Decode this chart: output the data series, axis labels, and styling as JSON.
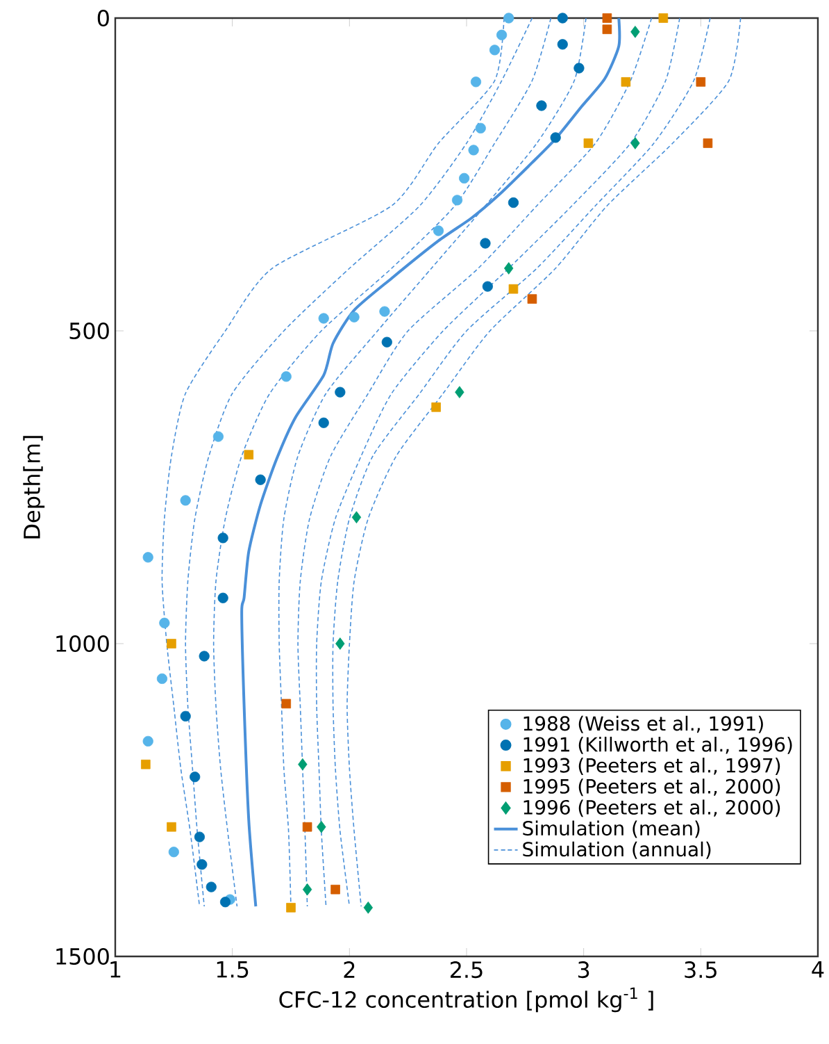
{
  "chart_data": {
    "type": "scatter",
    "xlabel": "CFC-12 concentration [pmol kg$^{-1}$ ]",
    "ylabel": "Depth[m]",
    "xlim": [
      1,
      4
    ],
    "xticks": [
      1,
      1.5,
      2,
      2.5,
      3,
      3.5,
      4
    ],
    "ylim": [
      1500,
      0
    ],
    "yticks": [
      0,
      500,
      1000,
      1500
    ],
    "legend": "bottom right",
    "series": [
      {
        "name": "1988 (Weiss et al., 1991)",
        "marker": "circle",
        "color": "#56b4e9",
        "x": [
          2.68,
          2.65,
          2.62,
          2.54,
          2.56,
          2.53,
          2.49,
          2.46,
          2.38,
          2.02,
          1.89,
          2.15,
          1.73,
          1.44,
          1.3,
          1.14,
          1.21,
          1.2,
          1.14,
          1.25,
          1.49
        ],
        "values": [
          0,
          27,
          51,
          102,
          176,
          211,
          256,
          291,
          340,
          478,
          480,
          469,
          573,
          669,
          771,
          862,
          967,
          1056,
          1156,
          1333,
          1409
        ]
      },
      {
        "name": "1991 (Killworth et al., 1996)",
        "marker": "circle",
        "color": "#0072b2",
        "x": [
          2.91,
          2.91,
          2.98,
          2.82,
          2.88,
          2.7,
          2.58,
          2.59,
          2.16,
          1.96,
          1.89,
          1.62,
          1.46,
          1.46,
          1.38,
          1.3,
          1.34,
          1.36,
          1.37,
          1.41,
          1.47
        ],
        "values": [
          0,
          42,
          80,
          140,
          191,
          295,
          360,
          429,
          518,
          598,
          647,
          738,
          831,
          927,
          1020,
          1116,
          1213,
          1309,
          1353,
          1389,
          1413
        ]
      },
      {
        "name": "1993 (Peeters et al., 1997)",
        "marker": "square",
        "color": "#e69f00",
        "x": [
          3.34,
          3.18,
          3.02,
          2.7,
          2.37,
          1.57,
          1.24,
          1.13,
          1.24,
          1.75
        ],
        "values": [
          0,
          102,
          200,
          433,
          622,
          698,
          1000,
          1193,
          1293,
          1422
        ]
      },
      {
        "name": "1995 (Peeters et al., 2000)",
        "marker": "square",
        "color": "#d55e00",
        "x": [
          3.1,
          3.1,
          3.5,
          3.53,
          2.78,
          1.73,
          1.82,
          1.94
        ],
        "values": [
          0,
          18,
          102,
          200,
          449,
          1096,
          1293,
          1393
        ]
      },
      {
        "name": "1996 (Peeters et al., 2000)",
        "marker": "diamond",
        "color": "#009e73",
        "x": [
          3.22,
          3.22,
          2.68,
          2.47,
          2.03,
          1.96,
          1.8,
          1.88,
          1.82,
          2.08
        ],
        "values": [
          22,
          200,
          400,
          598,
          798,
          1000,
          1193,
          1293,
          1393,
          1422
        ]
      },
      {
        "name": "Simulation (mean)",
        "type": "line",
        "line_style": "solid",
        "color": "#4a90d9",
        "x": [
          3.15,
          3.15,
          3.09,
          2.99,
          2.88,
          2.78,
          2.64,
          2.52,
          2.38,
          2.18,
          2.02,
          1.93,
          1.89,
          1.77,
          1.69,
          1.62,
          1.57,
          1.55,
          1.54,
          1.55,
          1.57,
          1.6
        ],
        "values": [
          0,
          45,
          97,
          142,
          193,
          231,
          282,
          320,
          356,
          416,
          467,
          520,
          571,
          638,
          704,
          778,
          853,
          927,
          949,
          1097,
          1282,
          1420
        ]
      },
      {
        "name": "Simulation (annual)",
        "type": "line",
        "line_style": "dashed",
        "color": "#4a90d9",
        "x": [
          2.66,
          2.62,
          2.38,
          2.18,
          1.67,
          1.47,
          1.3,
          1.24,
          1.21,
          1.2,
          1.22,
          1.25,
          1.28,
          1.32,
          1.36
        ],
        "values": [
          0,
          100,
          200,
          300,
          400,
          500,
          600,
          700,
          800,
          900,
          1000,
          1100,
          1200,
          1300,
          1420
        ]
      },
      {
        "type": "line",
        "line_style": "dashed",
        "color": "#4a90d9",
        "x": [
          2.78,
          2.65,
          2.5,
          2.3,
          2.0,
          1.72,
          1.5,
          1.4,
          1.34,
          1.31,
          1.3,
          1.31,
          1.33,
          1.35,
          1.38
        ],
        "values": [
          0,
          100,
          200,
          300,
          400,
          500,
          600,
          700,
          800,
          900,
          1000,
          1100,
          1200,
          1300,
          1420
        ]
      },
      {
        "type": "line",
        "line_style": "dashed",
        "color": "#4a90d9",
        "x": [
          2.86,
          2.78,
          2.62,
          2.45,
          2.18,
          1.88,
          1.66,
          1.54,
          1.47,
          1.43,
          1.42,
          1.43,
          1.45,
          1.48,
          1.52
        ],
        "values": [
          0,
          100,
          200,
          300,
          400,
          500,
          600,
          700,
          800,
          900,
          1000,
          1100,
          1200,
          1300,
          1420
        ]
      },
      {
        "type": "line",
        "line_style": "dashed",
        "color": "#4a90d9",
        "x": [
          3.01,
          2.96,
          2.8,
          2.58,
          2.35,
          2.12,
          1.9,
          1.78,
          1.72,
          1.7,
          1.7,
          1.71,
          1.72,
          1.74,
          1.75
        ],
        "values": [
          0,
          100,
          200,
          300,
          400,
          500,
          600,
          700,
          800,
          900,
          1000,
          1100,
          1200,
          1300,
          1420
        ]
      },
      {
        "type": "line",
        "line_style": "dashed",
        "color": "#4a90d9",
        "x": [
          3.29,
          3.2,
          3.05,
          2.8,
          2.55,
          2.25,
          2.08,
          1.92,
          1.83,
          1.79,
          1.78,
          1.79,
          1.8,
          1.81,
          1.82
        ],
        "values": [
          0,
          100,
          200,
          300,
          400,
          500,
          600,
          700,
          800,
          900,
          1000,
          1100,
          1200,
          1300,
          1420
        ]
      },
      {
        "type": "line",
        "line_style": "dashed",
        "color": "#4a90d9",
        "x": [
          3.41,
          3.35,
          3.2,
          2.95,
          2.68,
          2.4,
          2.18,
          2.05,
          1.94,
          1.88,
          1.86,
          1.86,
          1.87,
          1.88,
          1.9
        ],
        "values": [
          0,
          100,
          200,
          300,
          400,
          500,
          600,
          700,
          800,
          900,
          1000,
          1100,
          1200,
          1300,
          1420
        ]
      },
      {
        "type": "line",
        "line_style": "dashed",
        "color": "#4a90d9",
        "x": [
          3.54,
          3.47,
          3.3,
          3.05,
          2.8,
          2.5,
          2.3,
          2.1,
          2.0,
          1.95,
          1.93,
          1.93,
          1.94,
          1.96,
          2.0
        ],
        "values": [
          0,
          100,
          200,
          300,
          400,
          500,
          600,
          700,
          800,
          900,
          1000,
          1100,
          1200,
          1300,
          1420
        ]
      },
      {
        "type": "line",
        "line_style": "dashed",
        "color": "#4a90d9",
        "x": [
          3.67,
          3.62,
          3.38,
          3.1,
          2.88,
          2.6,
          2.4,
          2.2,
          2.08,
          2.02,
          2.0,
          1.99,
          2.0,
          2.02,
          2.05
        ],
        "values": [
          0,
          100,
          200,
          300,
          400,
          500,
          600,
          700,
          800,
          900,
          1000,
          1100,
          1200,
          1300,
          1420
        ]
      }
    ]
  }
}
